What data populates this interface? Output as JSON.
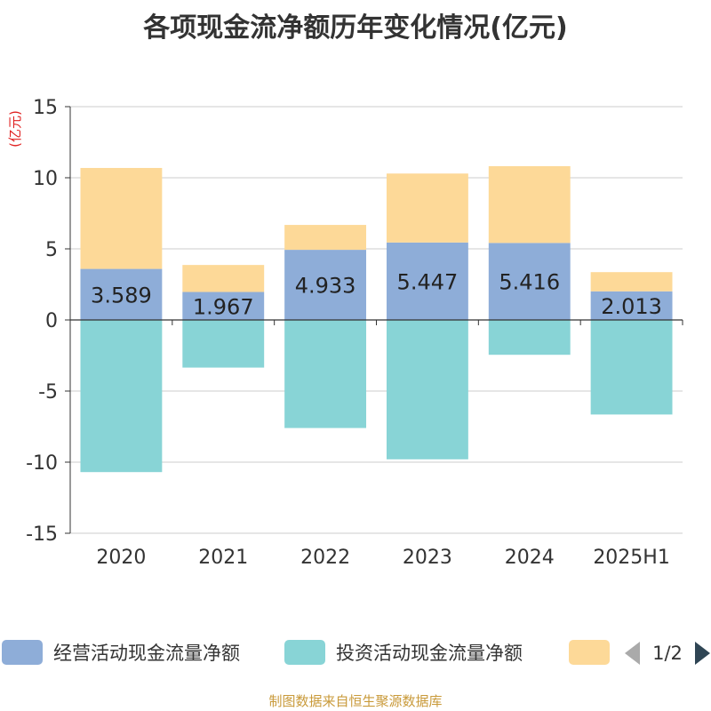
{
  "title": "各项现金流净额历年变化情况(亿元)",
  "source": "制图数据来自恒生聚源数据库",
  "legend_page": "1/2",
  "chart_data": {
    "type": "bar",
    "stacked": true,
    "ylabel": "(亿元)",
    "ylim": [
      -15,
      15
    ],
    "yticks": [
      15,
      10,
      5,
      0,
      -5,
      -10,
      -15
    ],
    "grid": true,
    "legend_position": "bottom",
    "categories": [
      "2020",
      "2021",
      "2022",
      "2023",
      "2024",
      "2025H1"
    ],
    "series": [
      {
        "name": "经营活动现金流量净额",
        "color": "#8eadd8",
        "values": [
          3.589,
          1.967,
          4.933,
          5.447,
          5.416,
          2.013
        ],
        "labels": [
          "3.589",
          "1.967",
          "4.933",
          "5.447",
          "5.416",
          "2.013"
        ]
      },
      {
        "name": "投资活动现金流量净额",
        "color": "#88d4d6",
        "values": [
          -10.7,
          -3.35,
          -7.6,
          -9.8,
          -2.45,
          -6.65
        ]
      },
      {
        "name": "",
        "color": "#fdd998",
        "values": [
          7.1,
          1.9,
          1.75,
          4.85,
          5.4,
          1.35
        ]
      }
    ]
  }
}
